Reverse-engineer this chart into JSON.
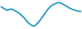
{
  "values": [
    0.6,
    0.5,
    0.4,
    0.3,
    0.35,
    0.4,
    0.35,
    0.25,
    0.15,
    0.05,
    -0.1,
    -0.25,
    -0.45,
    -0.65,
    -0.8,
    -0.92,
    -0.98,
    -0.88,
    -0.7,
    -0.5,
    -0.28,
    -0.05,
    0.2,
    0.42,
    0.6,
    0.72,
    0.8,
    0.88,
    0.92,
    0.88,
    0.8,
    0.7,
    0.6,
    0.5,
    0.42,
    0.35,
    0.3,
    0.25,
    0.22,
    0.2
  ],
  "line_color": "#2e9dc8",
  "linewidth": 1.6,
  "background_color": "#ffffff",
  "ylim_min": -1.15,
  "ylim_max": 1.1
}
